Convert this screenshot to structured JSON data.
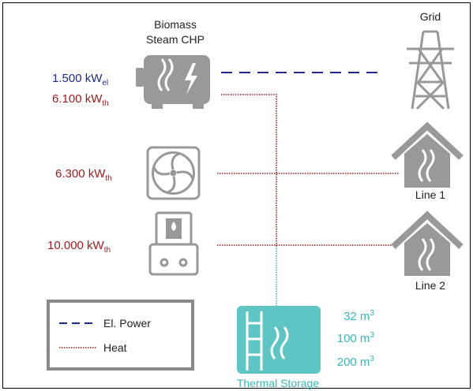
{
  "generator": {
    "label": [
      "Biomass",
      "Steam CHP"
    ],
    "outputs": [
      {
        "value": "1.500 kW",
        "sub": "el"
      },
      {
        "value": "6.100 kW",
        "sub": "th"
      }
    ]
  },
  "grid": {
    "label": "Grid"
  },
  "consumers": [
    {
      "value": "6.300 kW",
      "sub": "th"
    },
    {
      "value": "10.000 kW",
      "sub": "th"
    }
  ],
  "lines": [
    {
      "label": "Line 1"
    },
    {
      "label": "Line 2"
    }
  ],
  "legend": [
    {
      "label": "El. Power"
    },
    {
      "label": "Heat"
    }
  ],
  "storage": {
    "label": "Thermal Storage",
    "volumes": [
      {
        "value": "32 m",
        "sup": "3"
      },
      {
        "value": "100 m",
        "sup": "3"
      },
      {
        "value": "200 m",
        "sup": "3"
      }
    ]
  }
}
